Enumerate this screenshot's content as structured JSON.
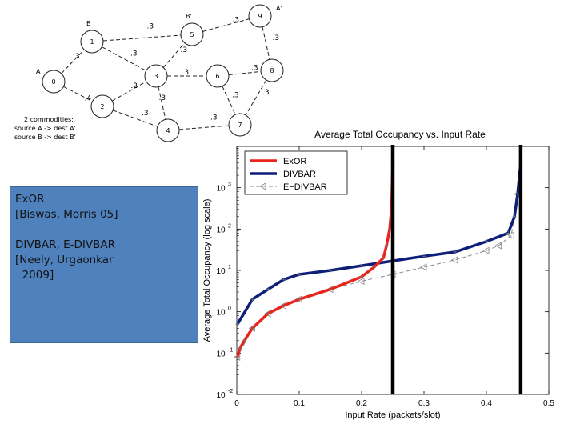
{
  "network": {
    "nodes": [
      {
        "id": "0",
        "label": "A"
      },
      {
        "id": "1",
        "label": "B"
      },
      {
        "id": "2",
        "label": ""
      },
      {
        "id": "3",
        "label": ""
      },
      {
        "id": "4",
        "label": ""
      },
      {
        "id": "5",
        "label": "B'"
      },
      {
        "id": "6",
        "label": ""
      },
      {
        "id": "7",
        "label": ""
      },
      {
        "id": "8",
        "label": ""
      },
      {
        "id": "9",
        "label": "A'"
      }
    ],
    "edges": [
      {
        "from": "0",
        "to": "1",
        "prob": ".3"
      },
      {
        "from": "0",
        "to": "2",
        "prob": ".4"
      },
      {
        "from": "1",
        "to": "5",
        "prob": ".3"
      },
      {
        "from": "1",
        "to": "3",
        "prob": ".3"
      },
      {
        "from": "2",
        "to": "3",
        "prob": ".2"
      },
      {
        "from": "2",
        "to": "4",
        "prob": ".3"
      },
      {
        "from": "3",
        "to": "5",
        "prob": ".3"
      },
      {
        "from": "3",
        "to": "6",
        "prob": ".3"
      },
      {
        "from": "3",
        "to": "4",
        "prob": ".3"
      },
      {
        "from": "5",
        "to": "9",
        "prob": ".3"
      },
      {
        "from": "6",
        "to": "8",
        "prob": ".3"
      },
      {
        "from": "6",
        "to": "7",
        "prob": ".3"
      },
      {
        "from": "9",
        "to": "8",
        "prob": ".3"
      },
      {
        "from": "8",
        "to": "7",
        "prob": ".3"
      },
      {
        "from": "4",
        "to": "7",
        "prob": ".3"
      }
    ],
    "caption": [
      "2 commodities:",
      "source A -> dest A'",
      "source B -> dest B'"
    ]
  },
  "references": {
    "line1": "ExOR",
    "line2": "[Biswas, Morris 05]",
    "line3": "DIVBAR, E-DIVBAR",
    "line4": "[Neely, Urgaonkar",
    "line5": "  2009]"
  },
  "chart_data": {
    "type": "line",
    "title": "Average Total Occupancy vs. Input Rate",
    "xlabel": "Input Rate (packets/slot)",
    "ylabel": "Average Total Occupancy (log scale)",
    "xlim": [
      0,
      0.5
    ],
    "ylim": [
      0.01,
      10000
    ],
    "yscale": "log",
    "xticks": [
      "0",
      "0.1",
      "0.2",
      "0.3",
      "0.4",
      "0.5"
    ],
    "yticks": [
      "10",
      "10",
      "10",
      "10",
      "10",
      "10"
    ],
    "ytick_exponents": [
      "-2",
      "-1",
      "0",
      "1",
      "2",
      "3"
    ],
    "legend_position": "top-left",
    "vertical_markers": [
      0.25,
      0.455
    ],
    "series": [
      {
        "name": "ExOR",
        "color": "#e8241c",
        "style": "solid",
        "marker": "star",
        "x": [
          0.001,
          0.005,
          0.012,
          0.025,
          0.05,
          0.075,
          0.1,
          0.15,
          0.2,
          0.22,
          0.235,
          0.24,
          0.245,
          0.248,
          0.25
        ],
        "y": [
          0.08,
          0.13,
          0.2,
          0.4,
          0.9,
          1.4,
          2.0,
          3.5,
          7.0,
          12,
          20,
          40,
          100,
          300,
          4000
        ]
      },
      {
        "name": "DIVBAR",
        "color": "#0d1f7a",
        "style": "solid",
        "marker": "star",
        "x": [
          0.001,
          0.025,
          0.05,
          0.075,
          0.1,
          0.15,
          0.2,
          0.25,
          0.3,
          0.35,
          0.4,
          0.435,
          0.445,
          0.45,
          0.455
        ],
        "y": [
          0.5,
          2.0,
          3.5,
          6.0,
          8.0,
          10,
          13,
          17,
          22,
          28,
          50,
          80,
          200,
          700,
          4000
        ]
      },
      {
        "name": "E−DIVBAR",
        "color": "#888888",
        "style": "dashed",
        "marker": "triangle-left",
        "x": [
          0.001,
          0.025,
          0.05,
          0.075,
          0.1,
          0.15,
          0.2,
          0.25,
          0.3,
          0.35,
          0.4,
          0.42,
          0.44,
          0.45
        ],
        "y": [
          0.08,
          0.4,
          0.9,
          1.4,
          2.0,
          3.5,
          5.5,
          8.0,
          12,
          18,
          30,
          40,
          70,
          700
        ]
      }
    ]
  }
}
